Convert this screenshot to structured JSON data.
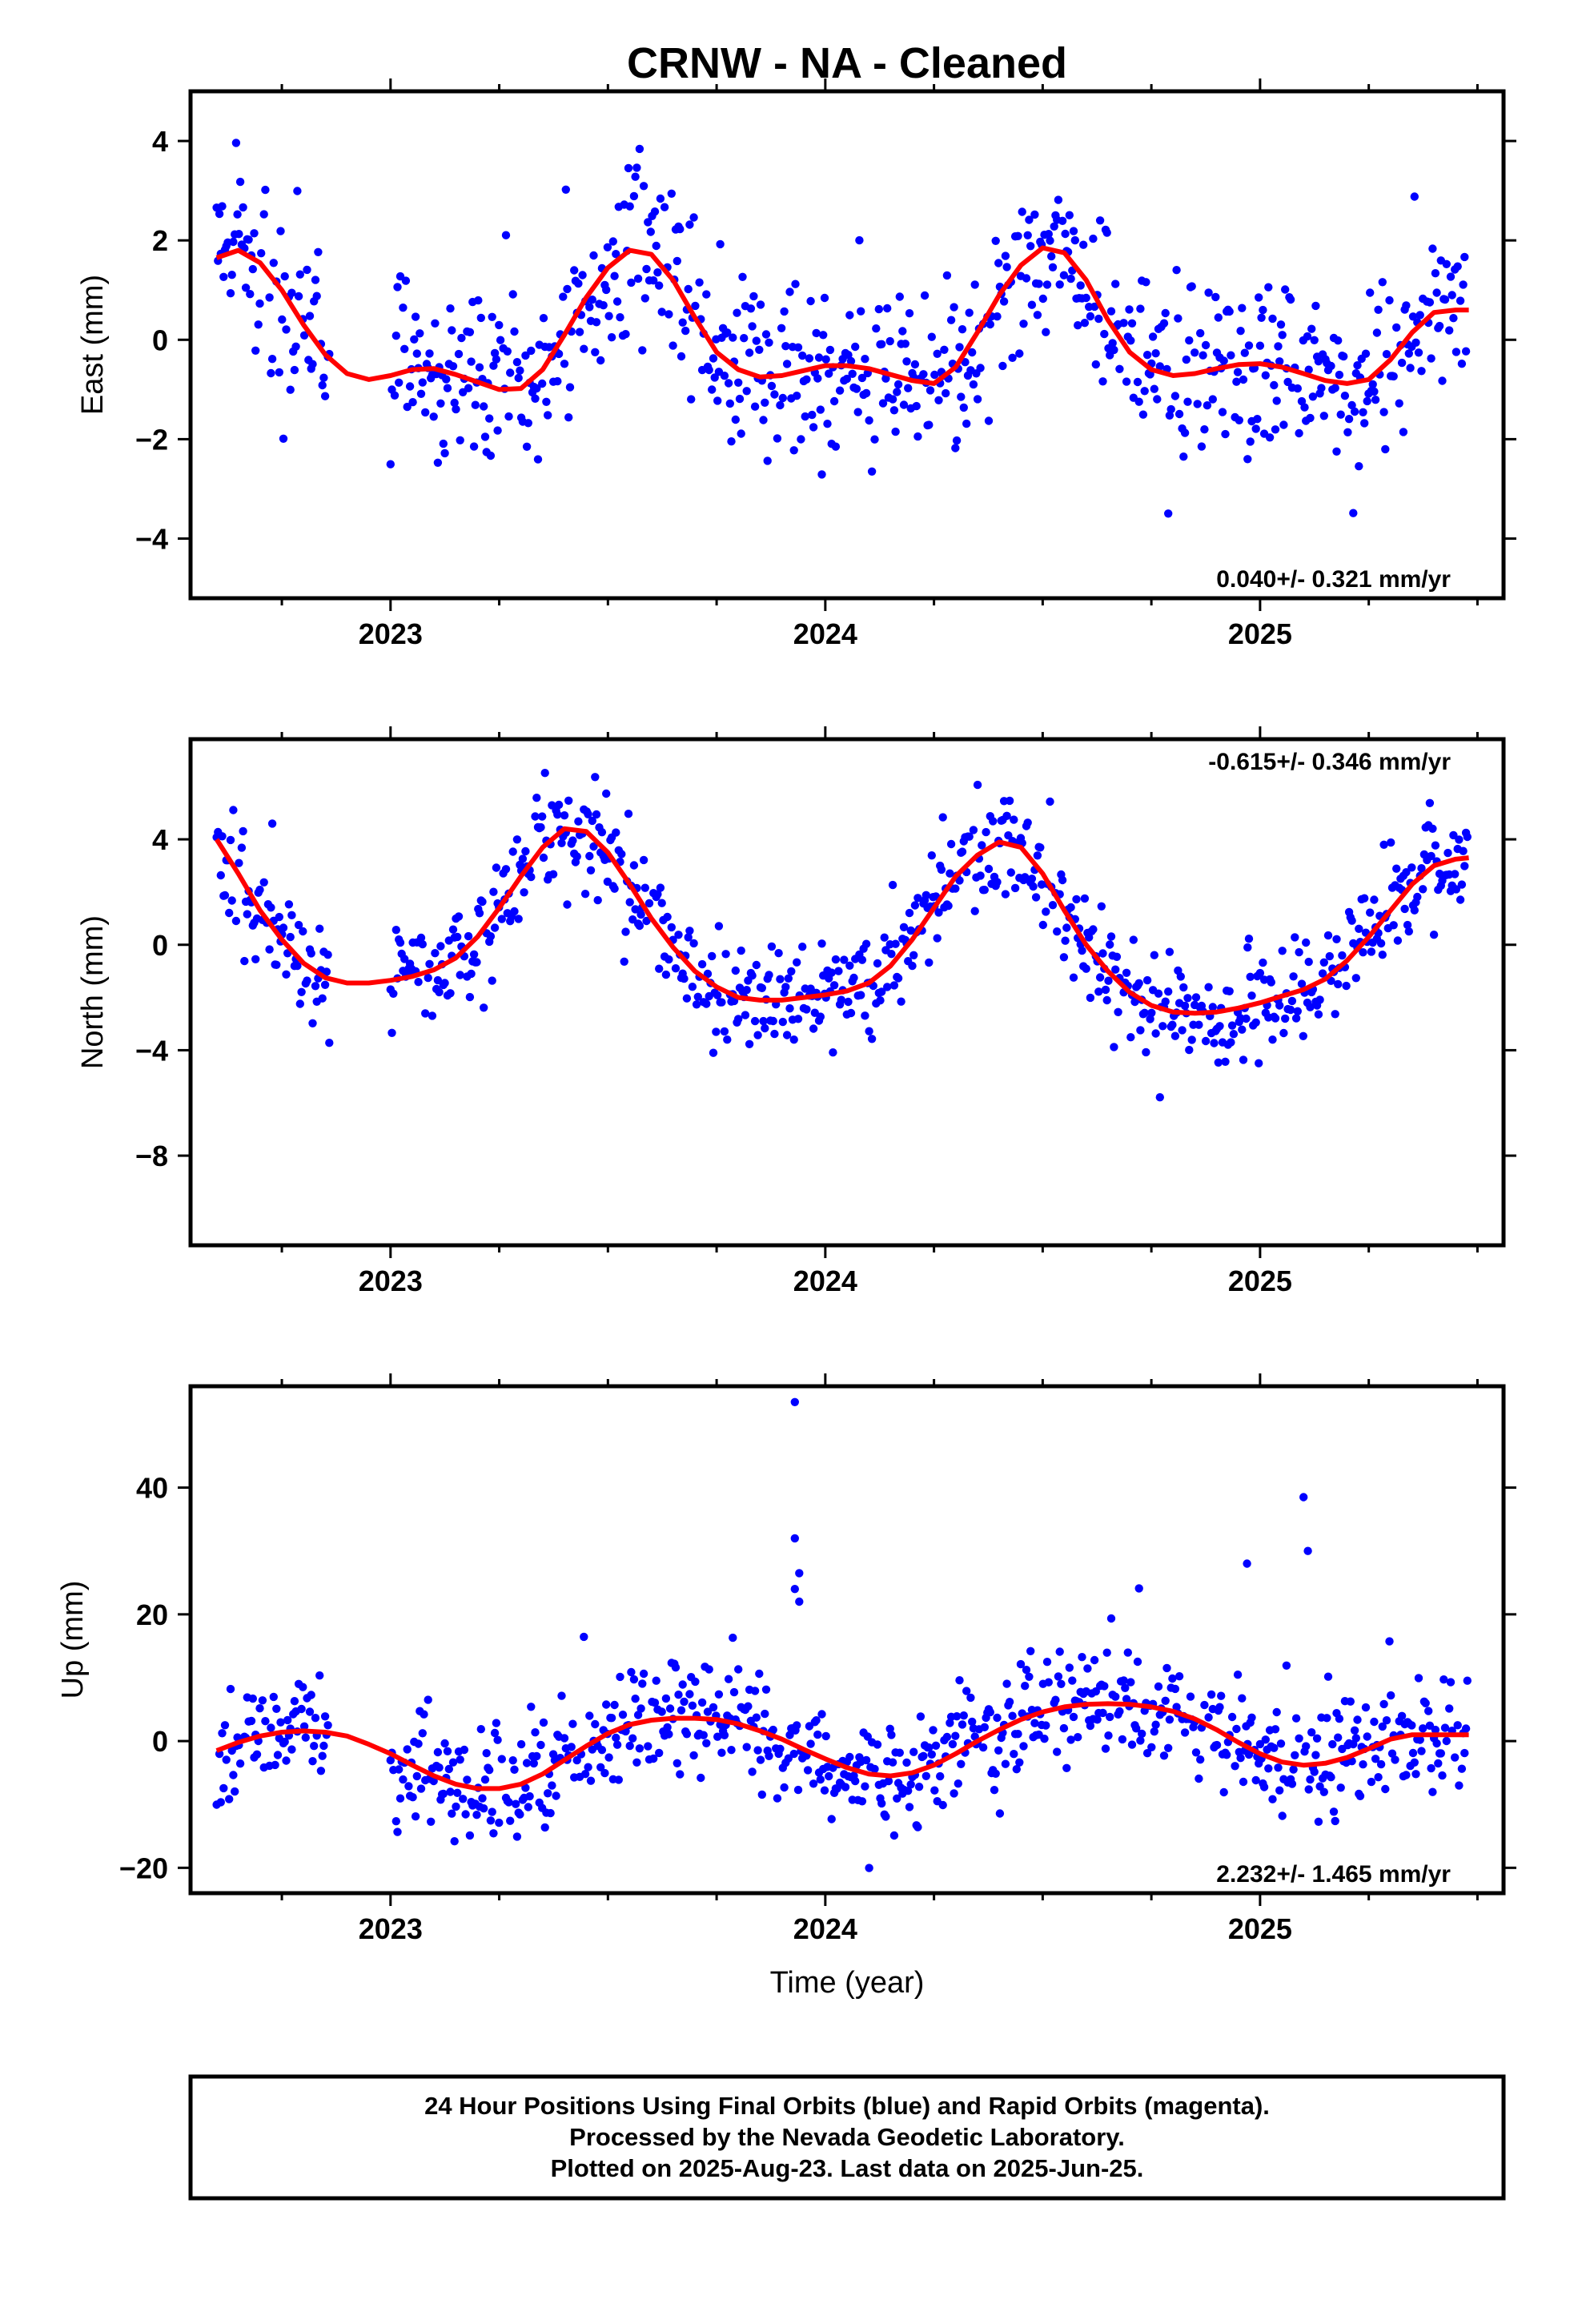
{
  "title": "CRNW  - NA - Cleaned",
  "xlabel": "Time (year)",
  "footer": {
    "line1": "24 Hour Positions Using Final Orbits (blue) and Rapid Orbits (magenta).",
    "line2": "Processed by the Nevada Geodetic Laboratory.",
    "line3": "Plotted on 2025-Aug-23. Last data on 2025-Jun-25."
  },
  "colors": {
    "points": "#0000ff",
    "fit": "#ff0000",
    "frame": "#000000"
  },
  "chart_data": [
    {
      "type": "scatter",
      "name": "east",
      "ylabel": "East (mm)",
      "rate_label": "0.040+/- 0.321 mm/yr",
      "rate_position": "bottom-right",
      "xlim": [
        2022.54,
        2025.56
      ],
      "ylim": [
        -5.2,
        5.0
      ],
      "xticks": [
        2023,
        2024,
        2025
      ],
      "yticks": [
        4,
        2,
        0,
        -2,
        -4
      ],
      "ytick_labels": [
        "4",
        "2",
        "0",
        "−2",
        "−4"
      ],
      "fit_curve": {
        "x": [
          2022.6,
          2022.65,
          2022.7,
          2022.75,
          2022.8,
          2022.85,
          2022.9,
          2022.95,
          2023.0,
          2023.05,
          2023.1,
          2023.15,
          2023.2,
          2023.25,
          2023.3,
          2023.35,
          2023.4,
          2023.45,
          2023.5,
          2023.55,
          2023.6,
          2023.65,
          2023.7,
          2023.75,
          2023.8,
          2023.85,
          2023.9,
          2023.95,
          2024.0,
          2024.05,
          2024.1,
          2024.15,
          2024.2,
          2024.25,
          2024.3,
          2024.35,
          2024.4,
          2024.45,
          2024.5,
          2024.55,
          2024.6,
          2024.65,
          2024.7,
          2024.75,
          2024.8,
          2024.85,
          2024.9,
          2024.95,
          2025.0,
          2025.05,
          2025.1,
          2025.15,
          2025.2,
          2025.25,
          2025.3,
          2025.35,
          2025.4,
          2025.45,
          2025.48
        ],
        "y": [
          1.65,
          1.8,
          1.55,
          1.0,
          0.3,
          -0.3,
          -0.68,
          -0.8,
          -0.72,
          -0.6,
          -0.58,
          -0.7,
          -0.85,
          -1.0,
          -0.98,
          -0.6,
          0.1,
          0.85,
          1.45,
          1.8,
          1.72,
          1.2,
          0.45,
          -0.25,
          -0.6,
          -0.75,
          -0.72,
          -0.62,
          -0.52,
          -0.52,
          -0.58,
          -0.7,
          -0.82,
          -0.88,
          -0.55,
          0.15,
          0.9,
          1.5,
          1.85,
          1.75,
          1.2,
          0.4,
          -0.25,
          -0.6,
          -0.72,
          -0.68,
          -0.58,
          -0.5,
          -0.48,
          -0.55,
          -0.68,
          -0.82,
          -0.88,
          -0.8,
          -0.4,
          0.15,
          0.55,
          0.6,
          0.6
        ]
      }
    },
    {
      "type": "scatter",
      "name": "north",
      "ylabel": "North (mm)",
      "rate_label": "-0.615+/- 0.346 mm/yr",
      "rate_position": "top-right",
      "xlim": [
        2022.54,
        2025.56
      ],
      "ylim": [
        -11.4,
        7.8
      ],
      "xticks": [
        2023,
        2024,
        2025
      ],
      "yticks": [
        4,
        0,
        -4,
        -8
      ],
      "ytick_labels": [
        "4",
        "0",
        "−4",
        "−8"
      ],
      "fit_curve": {
        "x": [
          2022.6,
          2022.65,
          2022.7,
          2022.75,
          2022.8,
          2022.85,
          2022.9,
          2022.95,
          2023.0,
          2023.05,
          2023.1,
          2023.15,
          2023.2,
          2023.25,
          2023.3,
          2023.35,
          2023.4,
          2023.45,
          2023.5,
          2023.55,
          2023.6,
          2023.65,
          2023.7,
          2023.75,
          2023.8,
          2023.85,
          2023.9,
          2023.95,
          2024.0,
          2024.05,
          2024.1,
          2024.15,
          2024.2,
          2024.25,
          2024.3,
          2024.35,
          2024.4,
          2024.45,
          2024.5,
          2024.55,
          2024.6,
          2024.65,
          2024.7,
          2024.75,
          2024.8,
          2024.85,
          2024.9,
          2024.95,
          2025.0,
          2025.05,
          2025.1,
          2025.15,
          2025.2,
          2025.25,
          2025.3,
          2025.35,
          2025.4,
          2025.45,
          2025.48
        ],
        "y": [
          4.0,
          2.7,
          1.3,
          0.2,
          -0.7,
          -1.25,
          -1.45,
          -1.45,
          -1.35,
          -1.2,
          -0.95,
          -0.5,
          0.3,
          1.4,
          2.6,
          3.7,
          4.4,
          4.3,
          3.5,
          2.3,
          1.0,
          -0.1,
          -1.0,
          -1.6,
          -2.0,
          -2.1,
          -2.1,
          -2.0,
          -1.9,
          -1.75,
          -1.45,
          -0.8,
          0.2,
          1.4,
          2.6,
          3.4,
          3.9,
          3.7,
          2.7,
          1.3,
          0.0,
          -1.0,
          -1.8,
          -2.3,
          -2.55,
          -2.6,
          -2.55,
          -2.4,
          -2.2,
          -1.95,
          -1.7,
          -1.3,
          -0.6,
          0.3,
          1.3,
          2.3,
          3.0,
          3.25,
          3.3
        ]
      }
    },
    {
      "type": "scatter",
      "name": "up",
      "ylabel": "Up (mm)",
      "rate_label": "2.232+/- 1.465 mm/yr",
      "rate_position": "bottom-right",
      "xlim": [
        2022.54,
        2025.56
      ],
      "ylim": [
        -24,
        56
      ],
      "xticks": [
        2023,
        2024,
        2025
      ],
      "yticks": [
        40,
        20,
        0,
        -20
      ],
      "ytick_labels": [
        "40",
        "20",
        "0",
        "−20"
      ],
      "outliers": [
        {
          "x": 2023.93,
          "y": 53.5
        },
        {
          "x": 2023.93,
          "y": 32.0
        },
        {
          "x": 2023.94,
          "y": 26.5
        },
        {
          "x": 2023.93,
          "y": 24.0
        },
        {
          "x": 2023.94,
          "y": 22.0
        },
        {
          "x": 2025.1,
          "y": 38.5
        },
        {
          "x": 2025.11,
          "y": 30.0
        },
        {
          "x": 2024.97,
          "y": 28.0
        }
      ],
      "fit_curve": {
        "x": [
          2022.6,
          2022.65,
          2022.7,
          2022.75,
          2022.8,
          2022.85,
          2022.9,
          2022.95,
          2023.0,
          2023.05,
          2023.1,
          2023.15,
          2023.2,
          2023.25,
          2023.3,
          2023.35,
          2023.4,
          2023.45,
          2023.5,
          2023.55,
          2023.6,
          2023.65,
          2023.7,
          2023.75,
          2023.8,
          2023.85,
          2023.9,
          2023.95,
          2024.0,
          2024.05,
          2024.1,
          2024.15,
          2024.2,
          2024.25,
          2024.3,
          2024.35,
          2024.4,
          2024.45,
          2024.5,
          2024.55,
          2024.6,
          2024.65,
          2024.7,
          2024.75,
          2024.8,
          2024.85,
          2024.9,
          2024.95,
          2025.0,
          2025.05,
          2025.1,
          2025.15,
          2025.2,
          2025.25,
          2025.3,
          2025.35,
          2025.4,
          2025.45,
          2025.48
        ],
        "y": [
          -1.5,
          -0.2,
          0.8,
          1.4,
          1.6,
          1.4,
          0.8,
          -0.5,
          -2.0,
          -3.8,
          -5.5,
          -6.8,
          -7.5,
          -7.5,
          -6.8,
          -5.2,
          -3.0,
          -0.8,
          1.2,
          2.6,
          3.3,
          3.6,
          3.6,
          3.4,
          2.7,
          1.6,
          0.3,
          -1.3,
          -2.8,
          -4.2,
          -5.2,
          -5.5,
          -5.0,
          -3.8,
          -2.0,
          0.0,
          1.8,
          3.4,
          4.6,
          5.4,
          5.8,
          5.9,
          5.8,
          5.4,
          4.7,
          3.5,
          1.8,
          -0.2,
          -2.0,
          -3.3,
          -3.8,
          -3.5,
          -2.6,
          -1.2,
          0.3,
          1.0,
          1.0,
          1.0,
          1.0
        ]
      }
    }
  ]
}
